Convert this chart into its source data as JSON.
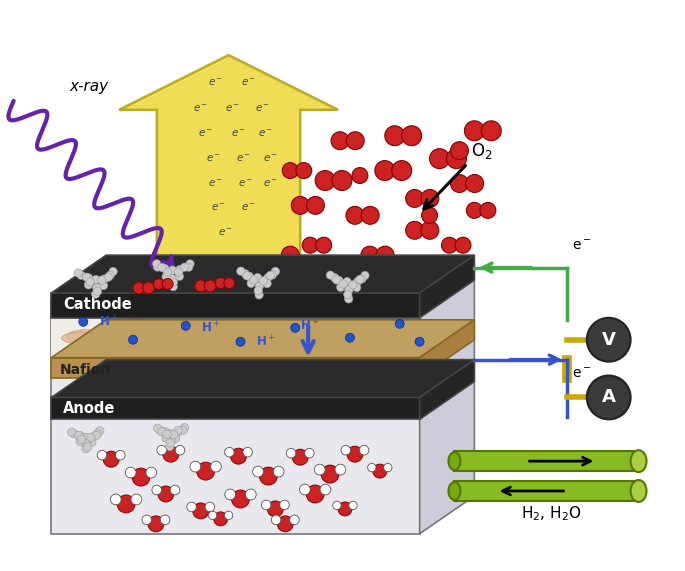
{
  "bg_color": "#ffffff",
  "xray_color": "#6622aa",
  "xray_label": "x-ray",
  "arrow_yellow_color": "#eedd55",
  "arrow_yellow_edge": "#bbaa22",
  "electron_label_color": "#444444",
  "o2_label": "O$_2$",
  "cathode_label": "Cathode",
  "nafion_label": "Nafion",
  "anode_label": "Anode",
  "cathode_color": "#1a1a1a",
  "nafion_color": "#c0a060",
  "anode_color": "#1a1a1a",
  "box_face_front": "#e8e8ee",
  "box_face_top": "#d5d5df",
  "box_face_right": "#ccccda",
  "box_edge": "#777777",
  "platinum_color": "#cccccc",
  "platinum_edge": "#999999",
  "o2_ball_color": "#cc2222",
  "o2_ball_edge": "#880000",
  "water_ball_color": "#ffffff",
  "water_ball_edge": "#555555",
  "blue_dot_color": "#2255cc",
  "arrow_green_color": "#44aa44",
  "arrow_blue_color": "#3355cc",
  "h_plus_color": "#3355cc",
  "tube_color": "#88bb22",
  "tube_edge": "#557700",
  "h2_label": "H$_2$, H$_2$O",
  "eminus_color": "#333333",
  "yellow_wire": "#ccaa00",
  "nafion_blob_color": "#ddb898",
  "nafion_blob_edge": "#cc9966"
}
